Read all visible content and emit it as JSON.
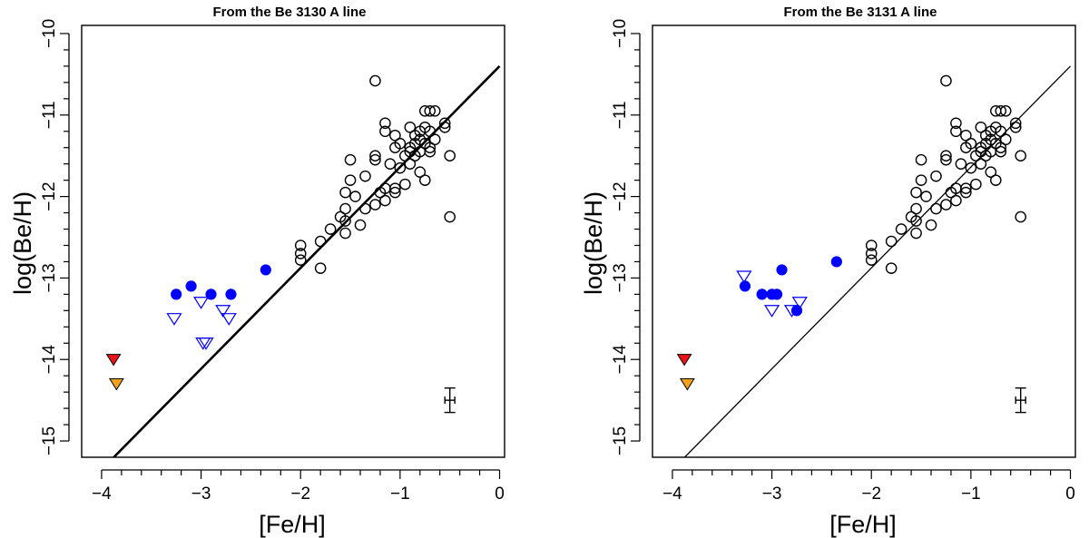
{
  "chart_data": [
    {
      "type": "scatter",
      "title": "From the Be 3130 A line",
      "xlabel": "[Fe/H]",
      "ylabel": "log(Be/H)",
      "xlim": [
        -4.2,
        0.05
      ],
      "ylim": [
        -15.2,
        -9.9
      ],
      "x_ticks": [
        -4,
        -3,
        -2,
        -1,
        0
      ],
      "x_tick_labels": [
        "−4",
        "−3",
        "−2",
        "−1",
        "0"
      ],
      "x_minor_tick_step": 0.2,
      "y_ticks": [
        -10,
        -11,
        -12,
        -13,
        -14,
        -15
      ],
      "y_tick_labels": [
        "−10",
        "−11",
        "−12",
        "−13",
        "−14",
        "−15"
      ],
      "y_minor_tick_step": 0.2,
      "line": {
        "x": [
          -4.2,
          0.0
        ],
        "y": [
          -15.6,
          -10.4
        ],
        "style": "thick"
      },
      "error_bar": {
        "x": -0.5,
        "y": -14.5,
        "xerr": 0.05,
        "yerr": 0.15
      },
      "series": [
        {
          "name": "literature detections",
          "marker": "open-circle",
          "color": "#000000",
          "points": [
            [
              -1.25,
              -10.58
            ],
            [
              -0.75,
              -10.95
            ],
            [
              -0.7,
              -10.95
            ],
            [
              -0.65,
              -10.95
            ],
            [
              -0.55,
              -11.1
            ],
            [
              -0.55,
              -11.15
            ],
            [
              -0.9,
              -11.15
            ],
            [
              -0.8,
              -11.2
            ],
            [
              -0.75,
              -11.15
            ],
            [
              -0.7,
              -11.2
            ],
            [
              -1.15,
              -11.1
            ],
            [
              -1.15,
              -11.2
            ],
            [
              -1.05,
              -11.25
            ],
            [
              -0.85,
              -11.25
            ],
            [
              -0.8,
              -11.3
            ],
            [
              -0.75,
              -11.35
            ],
            [
              -0.65,
              -11.3
            ],
            [
              -0.85,
              -11.35
            ],
            [
              -0.9,
              -11.4
            ],
            [
              -0.7,
              -11.4
            ],
            [
              -1.0,
              -11.35
            ],
            [
              -1.05,
              -11.4
            ],
            [
              -0.95,
              -11.5
            ],
            [
              -1.25,
              -11.5
            ],
            [
              -1.25,
              -11.55
            ],
            [
              -1.1,
              -11.6
            ],
            [
              -1.5,
              -11.55
            ],
            [
              -1.35,
              -11.75
            ],
            [
              -1.5,
              -11.8
            ],
            [
              -0.9,
              -11.45
            ],
            [
              -0.85,
              -11.5
            ],
            [
              -0.8,
              -11.45
            ],
            [
              -0.7,
              -11.45
            ],
            [
              -0.75,
              -11.8
            ],
            [
              -0.9,
              -11.6
            ],
            [
              -1.0,
              -11.65
            ],
            [
              -0.8,
              -11.7
            ],
            [
              -0.5,
              -11.5
            ],
            [
              -0.5,
              -12.25
            ],
            [
              -1.15,
              -11.9
            ],
            [
              -1.05,
              -11.9
            ],
            [
              -1.05,
              -11.95
            ],
            [
              -0.95,
              -11.85
            ],
            [
              -1.2,
              -11.95
            ],
            [
              -1.15,
              -12.05
            ],
            [
              -1.25,
              -12.1
            ],
            [
              -1.45,
              -12.0
            ],
            [
              -1.55,
              -11.95
            ],
            [
              -1.55,
              -12.15
            ],
            [
              -1.55,
              -12.3
            ],
            [
              -1.55,
              -12.45
            ],
            [
              -1.35,
              -12.15
            ],
            [
              -1.4,
              -12.35
            ],
            [
              -1.6,
              -12.25
            ],
            [
              -1.7,
              -12.4
            ],
            [
              -1.8,
              -12.55
            ],
            [
              -1.8,
              -12.88
            ],
            [
              -2.0,
              -12.6
            ],
            [
              -2.0,
              -12.7
            ],
            [
              -2.0,
              -12.78
            ]
          ]
        },
        {
          "name": "blue detections",
          "marker": "filled-circle",
          "color": "#0000ff",
          "points": [
            [
              -3.25,
              -13.2
            ],
            [
              -3.1,
              -13.1
            ],
            [
              -2.9,
              -13.2
            ],
            [
              -2.7,
              -13.2
            ],
            [
              -2.35,
              -12.9
            ]
          ]
        },
        {
          "name": "blue upper limits",
          "marker": "open-triangle-down",
          "color": "#0000ff",
          "points": [
            [
              -3.27,
              -13.5
            ],
            [
              -3.0,
              -13.3
            ],
            [
              -2.98,
              -13.8
            ],
            [
              -2.95,
              -13.8
            ],
            [
              -2.78,
              -13.4
            ],
            [
              -2.72,
              -13.5
            ]
          ]
        },
        {
          "name": "red upper limit",
          "marker": "filled-triangle-down",
          "color": "#e8141a",
          "points": [
            [
              -3.88,
              -14.0
            ]
          ]
        },
        {
          "name": "orange upper limit",
          "marker": "filled-triangle-down",
          "color": "#f0a11e",
          "points": [
            [
              -3.85,
              -14.3
            ]
          ]
        }
      ]
    },
    {
      "type": "scatter",
      "title": "From the Be 3131 A line",
      "xlabel": "[Fe/H]",
      "ylabel": "log(Be/H)",
      "xlim": [
        -4.2,
        0.05
      ],
      "ylim": [
        -15.2,
        -9.9
      ],
      "x_ticks": [
        -4,
        -3,
        -2,
        -1,
        0
      ],
      "x_tick_labels": [
        "−4",
        "−3",
        "−2",
        "−1",
        "0"
      ],
      "x_minor_tick_step": 0.2,
      "y_ticks": [
        -10,
        -11,
        -12,
        -13,
        -14,
        -15
      ],
      "y_tick_labels": [
        "−10",
        "−11",
        "−12",
        "−13",
        "−14",
        "−15"
      ],
      "y_minor_tick_step": 0.2,
      "line": {
        "x": [
          -4.2,
          0.0
        ],
        "y": [
          -15.6,
          -10.4
        ],
        "style": "thin"
      },
      "error_bar": {
        "x": -0.5,
        "y": -14.5,
        "xerr": 0.05,
        "yerr": 0.15
      },
      "series": [
        {
          "name": "literature detections",
          "marker": "open-circle",
          "color": "#000000",
          "points": [
            [
              -1.25,
              -10.58
            ],
            [
              -0.75,
              -10.95
            ],
            [
              -0.7,
              -10.95
            ],
            [
              -0.65,
              -10.95
            ],
            [
              -0.55,
              -11.1
            ],
            [
              -0.55,
              -11.15
            ],
            [
              -0.9,
              -11.15
            ],
            [
              -0.8,
              -11.2
            ],
            [
              -0.75,
              -11.15
            ],
            [
              -0.7,
              -11.2
            ],
            [
              -1.15,
              -11.1
            ],
            [
              -1.15,
              -11.2
            ],
            [
              -1.05,
              -11.25
            ],
            [
              -0.85,
              -11.25
            ],
            [
              -0.8,
              -11.3
            ],
            [
              -0.75,
              -11.35
            ],
            [
              -0.65,
              -11.3
            ],
            [
              -0.85,
              -11.35
            ],
            [
              -0.9,
              -11.4
            ],
            [
              -0.7,
              -11.4
            ],
            [
              -1.0,
              -11.35
            ],
            [
              -1.05,
              -11.4
            ],
            [
              -0.95,
              -11.5
            ],
            [
              -1.25,
              -11.5
            ],
            [
              -1.25,
              -11.55
            ],
            [
              -1.1,
              -11.6
            ],
            [
              -1.5,
              -11.55
            ],
            [
              -1.35,
              -11.75
            ],
            [
              -1.5,
              -11.8
            ],
            [
              -0.9,
              -11.45
            ],
            [
              -0.85,
              -11.5
            ],
            [
              -0.8,
              -11.45
            ],
            [
              -0.7,
              -11.45
            ],
            [
              -0.75,
              -11.8
            ],
            [
              -0.9,
              -11.6
            ],
            [
              -1.0,
              -11.65
            ],
            [
              -0.8,
              -11.7
            ],
            [
              -0.5,
              -11.5
            ],
            [
              -0.5,
              -12.25
            ],
            [
              -1.15,
              -11.9
            ],
            [
              -1.05,
              -11.9
            ],
            [
              -1.05,
              -11.95
            ],
            [
              -0.95,
              -11.85
            ],
            [
              -1.2,
              -11.95
            ],
            [
              -1.15,
              -12.05
            ],
            [
              -1.25,
              -12.1
            ],
            [
              -1.45,
              -12.0
            ],
            [
              -1.55,
              -11.95
            ],
            [
              -1.55,
              -12.15
            ],
            [
              -1.55,
              -12.3
            ],
            [
              -1.55,
              -12.45
            ],
            [
              -1.35,
              -12.15
            ],
            [
              -1.4,
              -12.35
            ],
            [
              -1.6,
              -12.25
            ],
            [
              -1.7,
              -12.4
            ],
            [
              -1.8,
              -12.55
            ],
            [
              -1.8,
              -12.88
            ],
            [
              -2.0,
              -12.6
            ],
            [
              -2.0,
              -12.7
            ],
            [
              -2.0,
              -12.78
            ]
          ]
        },
        {
          "name": "blue detections",
          "marker": "filled-circle",
          "color": "#0000ff",
          "points": [
            [
              -3.27,
              -13.1
            ],
            [
              -3.1,
              -13.2
            ],
            [
              -3.0,
              -13.2
            ],
            [
              -2.95,
              -13.2
            ],
            [
              -2.9,
              -12.9
            ],
            [
              -2.75,
              -13.4
            ],
            [
              -2.35,
              -12.8
            ]
          ]
        },
        {
          "name": "blue upper limits",
          "marker": "open-triangle-down",
          "color": "#0000ff",
          "points": [
            [
              -3.28,
              -12.98
            ],
            [
              -3.0,
              -13.4
            ],
            [
              -2.8,
              -13.4
            ],
            [
              -2.72,
              -13.3
            ]
          ]
        },
        {
          "name": "red upper limit",
          "marker": "filled-triangle-down",
          "color": "#e8141a",
          "points": [
            [
              -3.88,
              -14.0
            ]
          ]
        },
        {
          "name": "orange upper limit",
          "marker": "filled-triangle-down",
          "color": "#f0a11e",
          "points": [
            [
              -3.85,
              -14.3
            ]
          ]
        }
      ]
    }
  ]
}
